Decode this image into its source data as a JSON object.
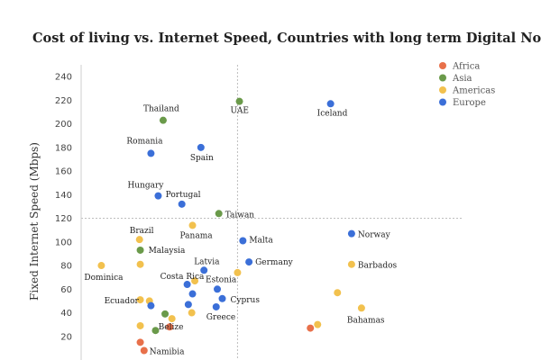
{
  "chart_data": {
    "type": "scatter",
    "title": "Cost of living vs. Internet Speed, Countries with long term Digital Nomad Visa",
    "ylabel": "Fixed Internet Speed (Mbps)",
    "xlabel": "",
    "ylim": [
      0,
      250
    ],
    "xlim": [
      0,
      100
    ],
    "yticks": [
      20,
      40,
      60,
      80,
      100,
      120,
      140,
      160,
      180,
      200,
      220,
      240
    ],
    "reference_lines": {
      "x": 41.0,
      "y": 120
    },
    "legend": {
      "position": "top-right"
    },
    "series": [
      {
        "name": "Africa",
        "color": "#e8704a",
        "points": [
          {
            "label": "",
            "x": 15.5,
            "y": 15
          },
          {
            "label": "Namibia",
            "x": 16.5,
            "y": 8
          },
          {
            "label": "",
            "x": 23.2,
            "y": 28
          },
          {
            "label": "",
            "x": 60.1,
            "y": 27
          }
        ]
      },
      {
        "name": "Asia",
        "color": "#6a9a4a",
        "points": [
          {
            "label": "Thailand",
            "x": 21.5,
            "y": 203
          },
          {
            "label": "UAE",
            "x": 41.5,
            "y": 219
          },
          {
            "label": "Taiwan",
            "x": 36.1,
            "y": 124
          },
          {
            "label": "Malaysia",
            "x": 15.5,
            "y": 93
          },
          {
            "label": "",
            "x": 22.0,
            "y": 39
          },
          {
            "label": "",
            "x": 19.5,
            "y": 25
          }
        ]
      },
      {
        "name": "Americas",
        "color": "#f2c14e",
        "points": [
          {
            "label": "Panama",
            "x": 29.2,
            "y": 114
          },
          {
            "label": "Brazil",
            "x": 15.3,
            "y": 102
          },
          {
            "label": "Dominica",
            "x": 5.3,
            "y": 80
          },
          {
            "label": "",
            "x": 15.5,
            "y": 81
          },
          {
            "label": "",
            "x": 41.0,
            "y": 74
          },
          {
            "label": "Barbados",
            "x": 70.9,
            "y": 81
          },
          {
            "label": "",
            "x": 29.8,
            "y": 67
          },
          {
            "label": "",
            "x": 67.2,
            "y": 57
          },
          {
            "label": "Ecuador",
            "x": 15.5,
            "y": 51
          },
          {
            "label": "",
            "x": 17.9,
            "y": 50
          },
          {
            "label": "",
            "x": 29.0,
            "y": 40
          },
          {
            "label": "Belize",
            "x": 23.8,
            "y": 35
          },
          {
            "label": "",
            "x": 15.5,
            "y": 29
          },
          {
            "label": "",
            "x": 62.0,
            "y": 30
          },
          {
            "label": "Bahamas",
            "x": 73.5,
            "y": 44
          }
        ]
      },
      {
        "name": "Europe",
        "color": "#3b6fd8",
        "points": [
          {
            "label": "Iceland",
            "x": 65.4,
            "y": 217
          },
          {
            "label": "Spain",
            "x": 31.4,
            "y": 180
          },
          {
            "label": "Romania",
            "x": 18.3,
            "y": 175
          },
          {
            "label": "Hungary",
            "x": 20.2,
            "y": 139
          },
          {
            "label": "Portugal",
            "x": 26.4,
            "y": 132
          },
          {
            "label": "Malta",
            "x": 42.4,
            "y": 101
          },
          {
            "label": "Norway",
            "x": 70.9,
            "y": 107
          },
          {
            "label": "Germany",
            "x": 44.0,
            "y": 83
          },
          {
            "label": "Latvia",
            "x": 32.2,
            "y": 76
          },
          {
            "label": "Costa Rica",
            "x": 27.8,
            "y": 64
          },
          {
            "label": "Estonia",
            "x": 35.7,
            "y": 60
          },
          {
            "label": "",
            "x": 29.2,
            "y": 56
          },
          {
            "label": "Cyprus",
            "x": 37.0,
            "y": 52
          },
          {
            "label": "",
            "x": 28.1,
            "y": 47
          },
          {
            "label": "Greece",
            "x": 35.4,
            "y": 45
          },
          {
            "label": "",
            "x": 18.3,
            "y": 46
          }
        ]
      }
    ]
  }
}
